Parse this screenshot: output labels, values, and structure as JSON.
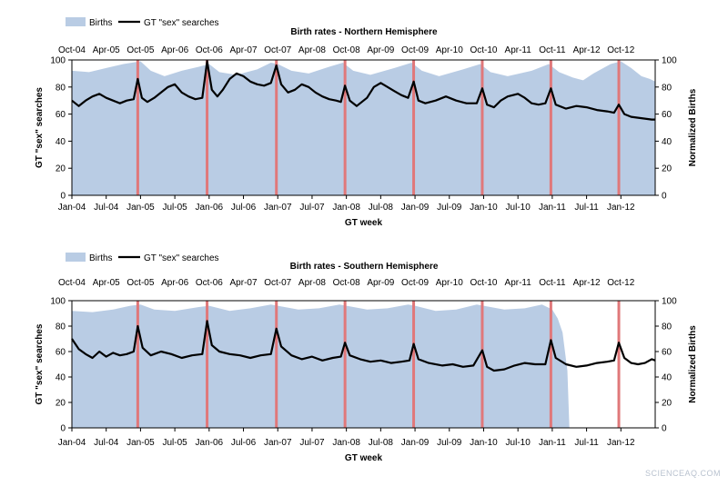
{
  "chart_data": [
    {
      "type": "area+line",
      "title": "Birth rates - Northern Hemisphere",
      "legend": [
        "Births",
        "GT \"sex\" searches"
      ],
      "legend_position": "top-left",
      "xlabel": "GT week",
      "ylabel_left": "GT \"sex\" searches",
      "ylabel_right": "Normalized Births",
      "ylim_left": [
        0,
        100
      ],
      "ylim_right": [
        0,
        100
      ],
      "yticks": [
        "0",
        "20",
        "40",
        "60",
        "80",
        "100"
      ],
      "bottom_ticks": [
        "Jan-04",
        "Jul-04",
        "Jan-05",
        "Jul-05",
        "Jan-06",
        "Jul-06",
        "Jan-07",
        "Jul-07",
        "Jan-08",
        "Jul-08",
        "Jan-09",
        "Jul-09",
        "Jan-10",
        "Jul-10",
        "Jan-11",
        "Jul-11",
        "Jan-12"
      ],
      "top_ticks": [
        "Oct-04",
        "Apr-05",
        "Oct-05",
        "Apr-06",
        "Oct-06",
        "Apr-07",
        "Oct-07",
        "Apr-08",
        "Oct-08",
        "Apr-09",
        "Oct-09",
        "Apr-10",
        "Oct-10",
        "Apr-11",
        "Oct-11",
        "Apr-12",
        "Oct-12"
      ],
      "x_range_years": [
        2004.0,
        2012.5
      ],
      "red_markers": [
        2004.96,
        2005.97,
        2006.98,
        2007.98,
        2008.98,
        2009.98,
        2010.98,
        2011.97
      ],
      "births": [
        [
          2004.0,
          92
        ],
        [
          2004.25,
          91
        ],
        [
          2004.5,
          94
        ],
        [
          2004.75,
          97
        ],
        [
          2005.0,
          99
        ],
        [
          2005.15,
          92
        ],
        [
          2005.35,
          88
        ],
        [
          2005.6,
          92
        ],
        [
          2005.85,
          95
        ],
        [
          2006.0,
          97
        ],
        [
          2006.15,
          91
        ],
        [
          2006.4,
          89
        ],
        [
          2006.7,
          93
        ],
        [
          2006.9,
          98
        ],
        [
          2007.0,
          97
        ],
        [
          2007.2,
          92
        ],
        [
          2007.45,
          90
        ],
        [
          2007.75,
          95
        ],
        [
          2007.95,
          98
        ],
        [
          2008.1,
          92
        ],
        [
          2008.35,
          89
        ],
        [
          2008.7,
          94
        ],
        [
          2008.95,
          98
        ],
        [
          2009.1,
          92
        ],
        [
          2009.35,
          88
        ],
        [
          2009.7,
          93
        ],
        [
          2009.95,
          97
        ],
        [
          2010.1,
          91
        ],
        [
          2010.35,
          88
        ],
        [
          2010.7,
          92
        ],
        [
          2010.95,
          97
        ],
        [
          2011.1,
          91
        ],
        [
          2011.3,
          87
        ],
        [
          2011.45,
          85
        ],
        [
          2011.6,
          90
        ],
        [
          2011.85,
          97
        ],
        [
          2012.0,
          99
        ],
        [
          2012.15,
          94
        ],
        [
          2012.3,
          88
        ],
        [
          2012.42,
          86
        ],
        [
          2012.5,
          84
        ]
      ],
      "searches": [
        [
          2004.0,
          70
        ],
        [
          2004.1,
          66
        ],
        [
          2004.2,
          70
        ],
        [
          2004.3,
          73
        ],
        [
          2004.4,
          75
        ],
        [
          2004.5,
          72
        ],
        [
          2004.6,
          70
        ],
        [
          2004.7,
          68
        ],
        [
          2004.8,
          70
        ],
        [
          2004.9,
          71
        ],
        [
          2004.96,
          86
        ],
        [
          2005.02,
          72
        ],
        [
          2005.1,
          69
        ],
        [
          2005.2,
          72
        ],
        [
          2005.3,
          76
        ],
        [
          2005.4,
          80
        ],
        [
          2005.5,
          82
        ],
        [
          2005.6,
          76
        ],
        [
          2005.7,
          73
        ],
        [
          2005.8,
          71
        ],
        [
          2005.9,
          72
        ],
        [
          2005.97,
          99
        ],
        [
          2006.04,
          78
        ],
        [
          2006.12,
          73
        ],
        [
          2006.2,
          78
        ],
        [
          2006.3,
          86
        ],
        [
          2006.4,
          90
        ],
        [
          2006.5,
          88
        ],
        [
          2006.6,
          84
        ],
        [
          2006.7,
          82
        ],
        [
          2006.8,
          81
        ],
        [
          2006.9,
          83
        ],
        [
          2006.98,
          96
        ],
        [
          2007.05,
          82
        ],
        [
          2007.15,
          76
        ],
        [
          2007.25,
          78
        ],
        [
          2007.35,
          82
        ],
        [
          2007.45,
          80
        ],
        [
          2007.55,
          76
        ],
        [
          2007.65,
          73
        ],
        [
          2007.75,
          71
        ],
        [
          2007.85,
          70
        ],
        [
          2007.92,
          69
        ],
        [
          2007.98,
          81
        ],
        [
          2008.05,
          70
        ],
        [
          2008.15,
          66
        ],
        [
          2008.3,
          72
        ],
        [
          2008.4,
          80
        ],
        [
          2008.5,
          83
        ],
        [
          2008.6,
          80
        ],
        [
          2008.7,
          77
        ],
        [
          2008.8,
          74
        ],
        [
          2008.9,
          72
        ],
        [
          2008.98,
          84
        ],
        [
          2009.05,
          70
        ],
        [
          2009.15,
          68
        ],
        [
          2009.3,
          70
        ],
        [
          2009.45,
          73
        ],
        [
          2009.6,
          70
        ],
        [
          2009.75,
          68
        ],
        [
          2009.9,
          68
        ],
        [
          2009.98,
          79
        ],
        [
          2010.05,
          67
        ],
        [
          2010.15,
          65
        ],
        [
          2010.25,
          70
        ],
        [
          2010.35,
          73
        ],
        [
          2010.5,
          75
        ],
        [
          2010.6,
          72
        ],
        [
          2010.7,
          68
        ],
        [
          2010.8,
          67
        ],
        [
          2010.9,
          68
        ],
        [
          2010.98,
          79
        ],
        [
          2011.05,
          67
        ],
        [
          2011.2,
          64
        ],
        [
          2011.35,
          66
        ],
        [
          2011.5,
          65
        ],
        [
          2011.65,
          63
        ],
        [
          2011.8,
          62
        ],
        [
          2011.9,
          61
        ],
        [
          2011.97,
          67
        ],
        [
          2012.05,
          60
        ],
        [
          2012.15,
          58
        ],
        [
          2012.3,
          57
        ],
        [
          2012.45,
          56
        ],
        [
          2012.5,
          56
        ]
      ]
    },
    {
      "type": "area+line",
      "title": "Birth rates - Southern Hemisphere",
      "legend": [
        "Births",
        "GT \"sex\" searches"
      ],
      "legend_position": "top-left",
      "xlabel": "GT week",
      "ylabel_left": "GT \"sex\" searches",
      "ylabel_right": "Normalized Births",
      "ylim_left": [
        0,
        100
      ],
      "ylim_right": [
        0,
        100
      ],
      "yticks": [
        "0",
        "20",
        "40",
        "60",
        "80",
        "100"
      ],
      "bottom_ticks": [
        "Jan-04",
        "Jul-04",
        "Jan-05",
        "Jul-05",
        "Jan-06",
        "Jul-06",
        "Jan-07",
        "Jul-07",
        "Jan-08",
        "Jul-08",
        "Jan-09",
        "Jul-09",
        "Jan-10",
        "Jul-10",
        "Jan-11",
        "Jul-11",
        "Jan-12"
      ],
      "top_ticks": [
        "Oct-04",
        "Apr-05",
        "Oct-05",
        "Apr-06",
        "Oct-06",
        "Apr-07",
        "Oct-07",
        "Apr-08",
        "Oct-08",
        "Apr-09",
        "Oct-09",
        "Apr-10",
        "Oct-10",
        "Apr-11",
        "Oct-11",
        "Apr-12",
        "Oct-12"
      ],
      "x_range_years": [
        2004.0,
        2012.5
      ],
      "red_markers": [
        2004.96,
        2005.97,
        2006.98,
        2007.98,
        2008.98,
        2009.98,
        2010.98,
        2011.97
      ],
      "births": [
        [
          2004.0,
          92
        ],
        [
          2004.3,
          91
        ],
        [
          2004.6,
          93
        ],
        [
          2004.85,
          96
        ],
        [
          2005.0,
          97
        ],
        [
          2005.2,
          93
        ],
        [
          2005.5,
          92
        ],
        [
          2005.85,
          95
        ],
        [
          2006.0,
          96
        ],
        [
          2006.3,
          92
        ],
        [
          2006.6,
          94
        ],
        [
          2006.9,
          97
        ],
        [
          2007.0,
          96
        ],
        [
          2007.3,
          93
        ],
        [
          2007.6,
          94
        ],
        [
          2007.9,
          97
        ],
        [
          2008.0,
          96
        ],
        [
          2008.3,
          93
        ],
        [
          2008.6,
          94
        ],
        [
          2008.9,
          97
        ],
        [
          2009.0,
          96
        ],
        [
          2009.3,
          92
        ],
        [
          2009.6,
          93
        ],
        [
          2009.9,
          97
        ],
        [
          2010.0,
          96
        ],
        [
          2010.3,
          93
        ],
        [
          2010.6,
          94
        ],
        [
          2010.85,
          97
        ],
        [
          2011.0,
          93
        ],
        [
          2011.08,
          86
        ],
        [
          2011.15,
          75
        ],
        [
          2011.22,
          45
        ],
        [
          2011.25,
          0
        ]
      ],
      "searches": [
        [
          2004.0,
          70
        ],
        [
          2004.1,
          62
        ],
        [
          2004.2,
          58
        ],
        [
          2004.3,
          55
        ],
        [
          2004.4,
          60
        ],
        [
          2004.5,
          56
        ],
        [
          2004.6,
          59
        ],
        [
          2004.7,
          57
        ],
        [
          2004.8,
          58
        ],
        [
          2004.9,
          60
        ],
        [
          2004.96,
          80
        ],
        [
          2005.03,
          63
        ],
        [
          2005.15,
          57
        ],
        [
          2005.3,
          60
        ],
        [
          2005.45,
          58
        ],
        [
          2005.6,
          55
        ],
        [
          2005.75,
          57
        ],
        [
          2005.9,
          58
        ],
        [
          2005.97,
          84
        ],
        [
          2006.04,
          65
        ],
        [
          2006.15,
          60
        ],
        [
          2006.3,
          58
        ],
        [
          2006.45,
          57
        ],
        [
          2006.6,
          55
        ],
        [
          2006.75,
          57
        ],
        [
          2006.9,
          58
        ],
        [
          2006.98,
          78
        ],
        [
          2007.05,
          64
        ],
        [
          2007.2,
          57
        ],
        [
          2007.35,
          54
        ],
        [
          2007.5,
          56
        ],
        [
          2007.65,
          53
        ],
        [
          2007.8,
          55
        ],
        [
          2007.92,
          56
        ],
        [
          2007.98,
          67
        ],
        [
          2008.05,
          57
        ],
        [
          2008.2,
          54
        ],
        [
          2008.35,
          52
        ],
        [
          2008.5,
          53
        ],
        [
          2008.65,
          51
        ],
        [
          2008.8,
          52
        ],
        [
          2008.92,
          53
        ],
        [
          2008.98,
          66
        ],
        [
          2009.05,
          54
        ],
        [
          2009.2,
          51
        ],
        [
          2009.4,
          49
        ],
        [
          2009.55,
          50
        ],
        [
          2009.7,
          48
        ],
        [
          2009.85,
          49
        ],
        [
          2009.98,
          61
        ],
        [
          2010.05,
          48
        ],
        [
          2010.15,
          45
        ],
        [
          2010.3,
          46
        ],
        [
          2010.45,
          49
        ],
        [
          2010.6,
          51
        ],
        [
          2010.75,
          50
        ],
        [
          2010.9,
          50
        ],
        [
          2010.98,
          69
        ],
        [
          2011.05,
          55
        ],
        [
          2011.2,
          50
        ],
        [
          2011.35,
          48
        ],
        [
          2011.5,
          49
        ],
        [
          2011.65,
          51
        ],
        [
          2011.8,
          52
        ],
        [
          2011.9,
          53
        ],
        [
          2011.97,
          67
        ],
        [
          2012.05,
          55
        ],
        [
          2012.15,
          51
        ],
        [
          2012.25,
          50
        ],
        [
          2012.35,
          51
        ],
        [
          2012.45,
          54
        ],
        [
          2012.5,
          53
        ]
      ]
    }
  ],
  "watermark": "SCIENCEAQ.COM",
  "colors": {
    "births_fill": "#b9cce4",
    "search_line": "#000000",
    "marker": "#e0787a"
  }
}
